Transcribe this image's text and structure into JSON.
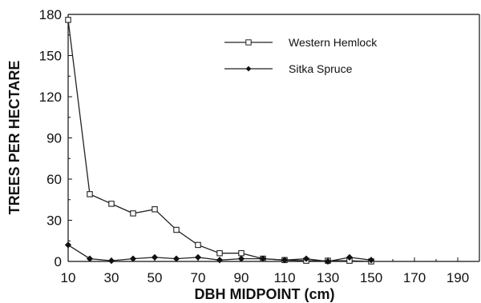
{
  "chart_data": {
    "type": "line",
    "title": "",
    "xlabel": "DBH  MIDPOINT  (cm)",
    "ylabel": "TREES  PER  HECTARE",
    "xlim": [
      10,
      200
    ],
    "ylim": [
      0,
      180
    ],
    "xticks": [
      10,
      30,
      50,
      70,
      90,
      110,
      130,
      150,
      170,
      190
    ],
    "yticks": [
      0,
      30,
      60,
      90,
      120,
      150,
      180
    ],
    "grid": false,
    "legend_position": "top-right",
    "series": [
      {
        "name": "Western Hemlock",
        "marker": "open-square",
        "x": [
          10,
          20,
          30,
          40,
          50,
          60,
          70,
          80,
          90,
          100,
          110,
          120,
          130,
          140,
          150
        ],
        "values": [
          176,
          49,
          42,
          35,
          38,
          23,
          12,
          6,
          6,
          2,
          1,
          0.5,
          0.5,
          0.5,
          0
        ]
      },
      {
        "name": "Sitka Spruce",
        "marker": "filled-diamond",
        "x": [
          10,
          20,
          30,
          40,
          50,
          60,
          70,
          80,
          90,
          100,
          110,
          120,
          130,
          140,
          150
        ],
        "values": [
          12,
          2,
          0.5,
          2,
          3,
          2,
          3,
          1,
          2,
          2,
          1,
          2,
          0,
          3,
          1
        ]
      }
    ]
  }
}
